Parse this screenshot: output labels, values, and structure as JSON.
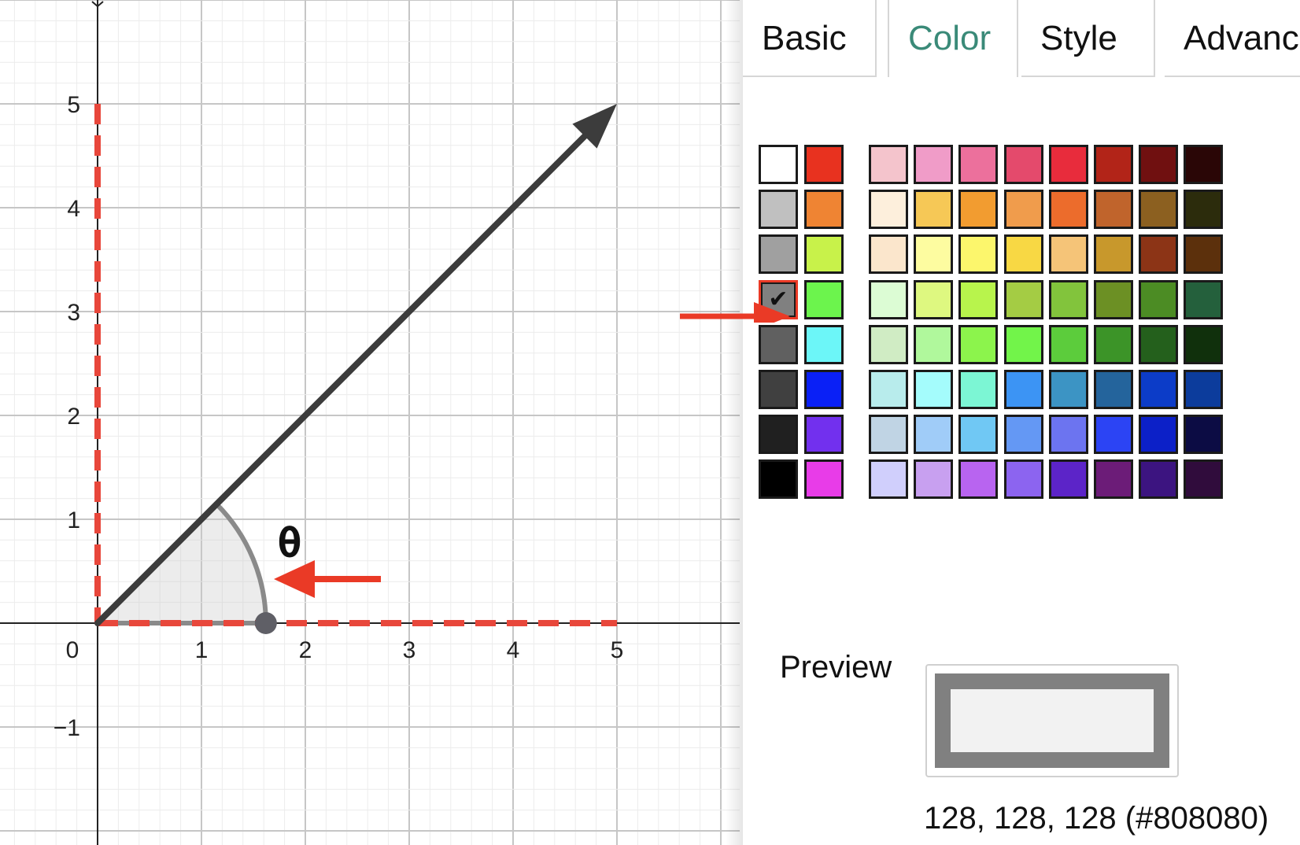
{
  "graph": {
    "x_tick_labels": [
      "1",
      "0",
      "1",
      "2",
      "3",
      "4",
      "5"
    ],
    "y_tick_labels": [
      "5",
      "4",
      "3",
      "2",
      "1",
      "−1"
    ],
    "angle_label": "θ",
    "vector": {
      "x": 5,
      "y": 5
    },
    "angle_point": {
      "x": 1.62,
      "y": 0
    },
    "dashed_color": "#e8473b",
    "vector_color": "#3c3c3c"
  },
  "tabs": [
    {
      "label": "Basic",
      "active": false
    },
    {
      "label": "Color",
      "active": true
    },
    {
      "label": "Style",
      "active": false
    },
    {
      "label": "Advanced",
      "active": false
    }
  ],
  "palette": {
    "gray_column": [
      "#ffffff",
      "#c0c0c0",
      "#a0a0a0",
      "#808080",
      "#606060",
      "#404040",
      "#202020",
      "#000000"
    ],
    "primary_column": [
      "#e8321f",
      "#ef8433",
      "#c8f24a",
      "#6cf44d",
      "#6cf6f8",
      "#0a20f6",
      "#7230ee",
      "#e83ce8"
    ],
    "grid": [
      [
        "#f4c4cc",
        "#f09cc8",
        "#ec709c",
        "#e44a6c",
        "#e82c3c",
        "#b22418",
        "#701010",
        "#2a0606"
      ],
      [
        "#fdefdc",
        "#f6c856",
        "#f29c30",
        "#f09c4c",
        "#ec6c2c",
        "#c0642c",
        "#8c6020",
        "#2c2c0c"
      ],
      [
        "#fbe6cc",
        "#fdfca0",
        "#fcf66c",
        "#f8d844",
        "#f5c478",
        "#c8982c",
        "#8c3416",
        "#5c300c"
      ],
      [
        "#dcfcd4",
        "#def880",
        "#b8f44c",
        "#a4cc44",
        "#82c43c",
        "#6c9024",
        "#4c8c24",
        "#24603c"
      ],
      [
        "#d0ecc4",
        "#b0f89c",
        "#8cf44c",
        "#72f44a",
        "#5ccc3c",
        "#3c9428",
        "#24601c",
        "#10300c"
      ],
      [
        "#b8ecec",
        "#a4fcfc",
        "#7cf6d4",
        "#3c94f4",
        "#3c94c4",
        "#24649c",
        "#0c3cc8",
        "#0c3c9c"
      ],
      [
        "#c0d4e4",
        "#a0ccf8",
        "#70c8f4",
        "#6498f4",
        "#6c74f0",
        "#2c44f4",
        "#0c20c8",
        "#0c0c44"
      ],
      [
        "#d0cffc",
        "#c8a0f0",
        "#b864f0",
        "#8c64f0",
        "#5c24c8",
        "#6c1c78",
        "#3c1480",
        "#300c3c"
      ]
    ],
    "selected_color": "#808080"
  },
  "preview": {
    "label": "Preview",
    "value_text": "128, 128, 128 (#808080)"
  }
}
